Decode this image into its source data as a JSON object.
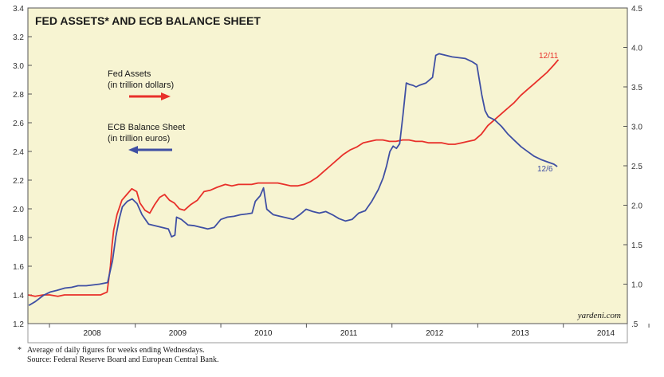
{
  "chart_data": {
    "type": "line",
    "title": "FED ASSETS* AND ECB BALANCE SHEET",
    "x_range": [
      "2007-10-01",
      "2014-10-01"
    ],
    "x_tick_labels": [
      "2008",
      "2009",
      "2010",
      "2011",
      "2012",
      "2013",
      "2014"
    ],
    "y_left": {
      "ylim": [
        1.2,
        3.4
      ],
      "ticks": [
        "1.2",
        "1.4",
        "1.6",
        "1.8",
        "2.0",
        "2.2",
        "2.4",
        "2.6",
        "2.8",
        "3.0",
        "3.2",
        "3.4"
      ]
    },
    "y_right": {
      "ylim": [
        0.5,
        4.5
      ],
      "ticks": [
        ".5",
        "1.0",
        "1.5",
        "2.0",
        "2.5",
        "3.0",
        "3.5",
        "4.0",
        "4.5"
      ]
    },
    "grid": false,
    "background": "#f7f4d2",
    "series": [
      {
        "name": "Fed Assets",
        "unit": "(in trillion dollars)",
        "axis": "left",
        "color": "#e8302a",
        "end_label": "12/11",
        "points": [
          [
            "2007-10-03",
            1.4
          ],
          [
            "2007-11-01",
            1.39
          ],
          [
            "2007-12-05",
            1.4
          ],
          [
            "2008-01-02",
            1.4
          ],
          [
            "2008-02-06",
            1.39
          ],
          [
            "2008-03-05",
            1.4
          ],
          [
            "2008-04-02",
            1.4
          ],
          [
            "2008-05-07",
            1.4
          ],
          [
            "2008-06-04",
            1.4
          ],
          [
            "2008-07-02",
            1.4
          ],
          [
            "2008-08-06",
            1.4
          ],
          [
            "2008-09-03",
            1.42
          ],
          [
            "2008-09-17",
            1.6
          ],
          [
            "2008-09-24",
            1.75
          ],
          [
            "2008-10-01",
            1.85
          ],
          [
            "2008-10-15",
            1.96
          ],
          [
            "2008-11-05",
            2.06
          ],
          [
            "2008-11-26",
            2.1
          ],
          [
            "2008-12-17",
            2.14
          ],
          [
            "2009-01-07",
            2.12
          ],
          [
            "2009-01-21",
            2.04
          ],
          [
            "2009-02-11",
            1.99
          ],
          [
            "2009-03-04",
            1.97
          ],
          [
            "2009-03-25",
            2.03
          ],
          [
            "2009-04-15",
            2.08
          ],
          [
            "2009-05-06",
            2.1
          ],
          [
            "2009-05-27",
            2.06
          ],
          [
            "2009-06-17",
            2.04
          ],
          [
            "2009-07-08",
            2.0
          ],
          [
            "2009-07-29",
            1.99
          ],
          [
            "2009-08-26",
            2.03
          ],
          [
            "2009-09-23",
            2.06
          ],
          [
            "2009-10-21",
            2.12
          ],
          [
            "2009-11-18",
            2.13
          ],
          [
            "2009-12-16",
            2.15
          ],
          [
            "2010-01-20",
            2.17
          ],
          [
            "2010-02-17",
            2.16
          ],
          [
            "2010-03-17",
            2.17
          ],
          [
            "2010-04-14",
            2.17
          ],
          [
            "2010-05-12",
            2.17
          ],
          [
            "2010-06-09",
            2.18
          ],
          [
            "2010-07-07",
            2.18
          ],
          [
            "2010-08-04",
            2.18
          ],
          [
            "2010-09-01",
            2.18
          ],
          [
            "2010-09-29",
            2.17
          ],
          [
            "2010-10-27",
            2.16
          ],
          [
            "2010-11-24",
            2.16
          ],
          [
            "2010-12-22",
            2.17
          ],
          [
            "2011-01-19",
            2.19
          ],
          [
            "2011-02-16",
            2.22
          ],
          [
            "2011-03-16",
            2.26
          ],
          [
            "2011-04-13",
            2.3
          ],
          [
            "2011-05-11",
            2.34
          ],
          [
            "2011-06-08",
            2.38
          ],
          [
            "2011-07-06",
            2.41
          ],
          [
            "2011-08-03",
            2.43
          ],
          [
            "2011-08-31",
            2.46
          ],
          [
            "2011-09-28",
            2.47
          ],
          [
            "2011-10-26",
            2.48
          ],
          [
            "2011-11-23",
            2.48
          ],
          [
            "2011-12-21",
            2.47
          ],
          [
            "2012-01-18",
            2.47
          ],
          [
            "2012-02-15",
            2.48
          ],
          [
            "2012-03-14",
            2.48
          ],
          [
            "2012-04-11",
            2.47
          ],
          [
            "2012-05-09",
            2.47
          ],
          [
            "2012-06-06",
            2.46
          ],
          [
            "2012-07-04",
            2.46
          ],
          [
            "2012-08-01",
            2.46
          ],
          [
            "2012-08-29",
            2.45
          ],
          [
            "2012-09-26",
            2.45
          ],
          [
            "2012-10-24",
            2.46
          ],
          [
            "2012-11-21",
            2.47
          ],
          [
            "2012-12-19",
            2.48
          ],
          [
            "2013-01-16",
            2.52
          ],
          [
            "2013-02-13",
            2.58
          ],
          [
            "2013-03-13",
            2.62
          ],
          [
            "2013-04-10",
            2.66
          ],
          [
            "2013-05-08",
            2.7
          ],
          [
            "2013-06-05",
            2.74
          ],
          [
            "2013-07-03",
            2.79
          ],
          [
            "2013-07-31",
            2.83
          ],
          [
            "2013-08-28",
            2.87
          ],
          [
            "2013-09-25",
            2.91
          ],
          [
            "2013-10-23",
            2.95
          ],
          [
            "2013-11-20",
            3.0
          ],
          [
            "2013-12-11",
            3.04
          ]
        ]
      },
      {
        "name": "ECB Balance Sheet",
        "unit": "(in trillion euros)",
        "axis": "right",
        "color": "#3f4fa3",
        "end_label": "12/6",
        "points": [
          [
            "2007-10-05",
            0.73
          ],
          [
            "2007-11-02",
            0.78
          ],
          [
            "2007-12-07",
            0.86
          ],
          [
            "2008-01-04",
            0.9
          ],
          [
            "2008-02-01",
            0.92
          ],
          [
            "2008-03-07",
            0.95
          ],
          [
            "2008-04-04",
            0.96
          ],
          [
            "2008-05-02",
            0.98
          ],
          [
            "2008-06-06",
            0.98
          ],
          [
            "2008-07-04",
            0.99
          ],
          [
            "2008-08-01",
            1.0
          ],
          [
            "2008-09-05",
            1.02
          ],
          [
            "2008-09-26",
            1.3
          ],
          [
            "2008-10-10",
            1.6
          ],
          [
            "2008-10-24",
            1.82
          ],
          [
            "2008-11-07",
            1.98
          ],
          [
            "2008-11-28",
            2.05
          ],
          [
            "2008-12-19",
            2.08
          ],
          [
            "2009-01-09",
            2.02
          ],
          [
            "2009-01-30",
            1.88
          ],
          [
            "2009-02-27",
            1.76
          ],
          [
            "2009-03-27",
            1.74
          ],
          [
            "2009-04-24",
            1.72
          ],
          [
            "2009-05-22",
            1.7
          ],
          [
            "2009-06-05",
            1.6
          ],
          [
            "2009-06-19",
            1.62
          ],
          [
            "2009-06-26",
            1.85
          ],
          [
            "2009-07-17",
            1.82
          ],
          [
            "2009-08-14",
            1.75
          ],
          [
            "2009-09-11",
            1.74
          ],
          [
            "2009-10-09",
            1.72
          ],
          [
            "2009-11-06",
            1.7
          ],
          [
            "2009-12-04",
            1.72
          ],
          [
            "2010-01-01",
            1.82
          ],
          [
            "2010-01-29",
            1.85
          ],
          [
            "2010-02-26",
            1.86
          ],
          [
            "2010-03-26",
            1.88
          ],
          [
            "2010-04-23",
            1.89
          ],
          [
            "2010-05-14",
            1.9
          ],
          [
            "2010-05-28",
            2.05
          ],
          [
            "2010-06-18",
            2.12
          ],
          [
            "2010-07-02",
            2.22
          ],
          [
            "2010-07-16",
            1.95
          ],
          [
            "2010-08-13",
            1.88
          ],
          [
            "2010-09-10",
            1.86
          ],
          [
            "2010-10-08",
            1.84
          ],
          [
            "2010-11-05",
            1.82
          ],
          [
            "2010-12-03",
            1.88
          ],
          [
            "2010-12-31",
            1.95
          ],
          [
            "2011-01-28",
            1.92
          ],
          [
            "2011-02-25",
            1.9
          ],
          [
            "2011-03-25",
            1.92
          ],
          [
            "2011-04-22",
            1.88
          ],
          [
            "2011-05-20",
            1.83
          ],
          [
            "2011-06-17",
            1.8
          ],
          [
            "2011-07-15",
            1.82
          ],
          [
            "2011-08-12",
            1.9
          ],
          [
            "2011-09-09",
            1.93
          ],
          [
            "2011-10-07",
            2.05
          ],
          [
            "2011-11-04",
            2.2
          ],
          [
            "2011-11-25",
            2.35
          ],
          [
            "2011-12-09",
            2.5
          ],
          [
            "2011-12-23",
            2.68
          ],
          [
            "2012-01-06",
            2.75
          ],
          [
            "2012-01-20",
            2.72
          ],
          [
            "2012-02-03",
            2.78
          ],
          [
            "2012-02-17",
            3.15
          ],
          [
            "2012-03-02",
            3.55
          ],
          [
            "2012-03-16",
            3.53
          ],
          [
            "2012-03-30",
            3.52
          ],
          [
            "2012-04-13",
            3.5
          ],
          [
            "2012-04-27",
            3.52
          ],
          [
            "2012-05-25",
            3.55
          ],
          [
            "2012-06-22",
            3.62
          ],
          [
            "2012-07-06",
            3.9
          ],
          [
            "2012-07-20",
            3.92
          ],
          [
            "2012-08-17",
            3.9
          ],
          [
            "2012-09-14",
            3.88
          ],
          [
            "2012-10-12",
            3.87
          ],
          [
            "2012-11-09",
            3.86
          ],
          [
            "2012-12-07",
            3.82
          ],
          [
            "2012-12-28",
            3.78
          ],
          [
            "2013-01-18",
            3.4
          ],
          [
            "2013-02-01",
            3.2
          ],
          [
            "2013-02-15",
            3.12
          ],
          [
            "2013-03-15",
            3.08
          ],
          [
            "2013-04-12",
            3.0
          ],
          [
            "2013-05-10",
            2.9
          ],
          [
            "2013-06-07",
            2.82
          ],
          [
            "2013-07-05",
            2.74
          ],
          [
            "2013-08-02",
            2.68
          ],
          [
            "2013-08-30",
            2.62
          ],
          [
            "2013-09-27",
            2.58
          ],
          [
            "2013-10-25",
            2.55
          ],
          [
            "2013-11-22",
            2.52
          ],
          [
            "2013-12-06",
            2.49
          ]
        ]
      }
    ],
    "watermark": "yardeni.com"
  },
  "footnote": {
    "star": "*",
    "line1": "Average of daily figures for weeks ending Wednesdays.",
    "line2": "Source: Federal Reserve Board and European Central Bank."
  }
}
